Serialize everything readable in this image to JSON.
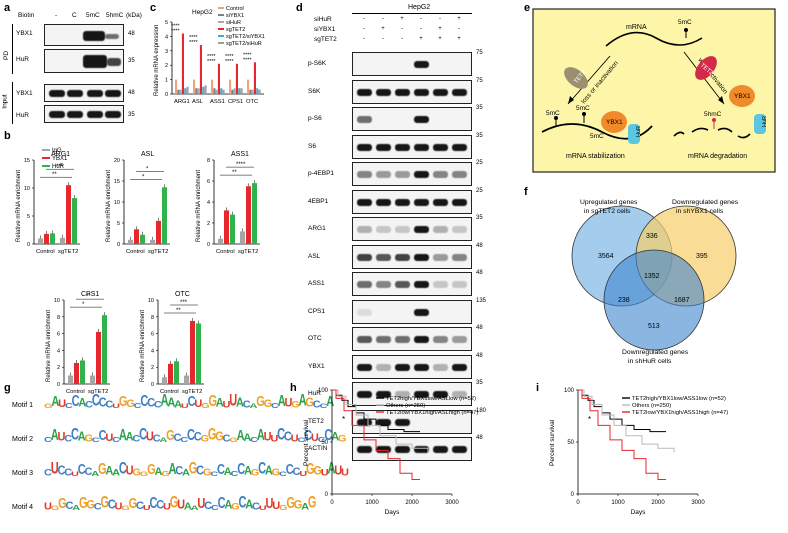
{
  "panel_letters": [
    "a",
    "b",
    "c",
    "d",
    "e",
    "f",
    "g",
    "h",
    "i"
  ],
  "panel_a": {
    "row_header": "Biotin",
    "lanes": [
      "-",
      "C",
      "5mC",
      "5hmC"
    ],
    "kda": "(kDa)",
    "group_pd": "PD",
    "group_input": "Input",
    "rows": [
      {
        "name": "YBX1",
        "mw": "48"
      },
      {
        "name": "HuR",
        "mw": "35"
      },
      {
        "name": "YBX1",
        "mw": "48"
      },
      {
        "name": "HuR",
        "mw": "35"
      }
    ]
  },
  "panel_b": {
    "legend": [
      "IgG",
      "YBX1",
      "HuR"
    ],
    "legend_colors": [
      "#a6a6a6",
      "#e8262d",
      "#2fb34a"
    ],
    "ylabel": "Relative mRNA enrichment",
    "xcats": [
      "Control",
      "sgTET2"
    ],
    "charts": [
      {
        "title": "ARG1",
        "ymax": 15,
        "ticks": [
          "0",
          "5",
          "10",
          "15"
        ],
        "values": [
          [
            1,
            1.8,
            1.9
          ],
          [
            1.1,
            10.5,
            8.2
          ]
        ],
        "sig": [
          "**",
          "***"
        ]
      },
      {
        "title": "ASL",
        "ymax": 20,
        "ticks": [
          "0",
          "5",
          "10",
          "15",
          "20"
        ],
        "values": [
          [
            1,
            3.5,
            2.2
          ],
          [
            1,
            5.5,
            13.5
          ]
        ],
        "sig": [
          "*",
          "*"
        ]
      },
      {
        "title": "ASS1",
        "ymax": 8,
        "ticks": [
          "0",
          "2",
          "4",
          "6",
          "8"
        ],
        "values": [
          [
            0.5,
            3.2,
            2.8
          ],
          [
            1.2,
            5.5,
            5.8
          ]
        ],
        "sig": [
          "**",
          "****"
        ]
      },
      {
        "title": "CPS1",
        "ymax": 10,
        "ticks": [
          "0",
          "2",
          "4",
          "6",
          "8",
          "10"
        ],
        "values": [
          [
            1,
            2.5,
            2.8
          ],
          [
            1,
            6.2,
            8.2
          ]
        ],
        "sig": [
          "*",
          "**"
        ]
      },
      {
        "title": "OTC",
        "ymax": 10,
        "ticks": [
          "0",
          "2",
          "4",
          "6",
          "8",
          "10"
        ],
        "values": [
          [
            0.8,
            2.4,
            2.7
          ],
          [
            1,
            7.5,
            7.2
          ]
        ],
        "sig": [
          "**",
          "***"
        ]
      }
    ]
  },
  "panel_c": {
    "title": "HepG2",
    "ylabel": "Relative mRNA expression",
    "ticks": [
      "0",
      "1",
      "2",
      "3",
      "4",
      "5"
    ],
    "ymax": 5,
    "categories": [
      "ARG1",
      "ASL",
      "ASS1",
      "CPS1",
      "OTC"
    ],
    "legend": [
      "Control",
      "siYBX1",
      "siHuR",
      "sgTET2",
      "sgTET2/siYBX1",
      "sgTET2/siHuR"
    ],
    "legend_colors": [
      "#f0a27a",
      "#7f7f7f",
      "#a9a9a9",
      "#e8262d",
      "#4aa8d8",
      "#9e9e9e"
    ],
    "values": [
      [
        1,
        0.3,
        0.3,
        4.2,
        0.4,
        0.5
      ],
      [
        1,
        0.4,
        0.4,
        3.4,
        0.5,
        0.6
      ],
      [
        1,
        0.4,
        0.3,
        2.1,
        0.4,
        0.3
      ],
      [
        1,
        0.3,
        0.4,
        2.1,
        0.4,
        0.4
      ],
      [
        1,
        0.3,
        0.3,
        2.2,
        0.4,
        0.3
      ]
    ],
    "sig": [
      "****",
      "****",
      "****",
      "****",
      "****"
    ]
  },
  "panel_d": {
    "title": "HepG2",
    "header_rows": [
      {
        "name": "siHuR",
        "marks": [
          "-",
          "-",
          "+",
          "-",
          "-",
          "+"
        ]
      },
      {
        "name": "siYBX1",
        "marks": [
          "-",
          "+",
          "-",
          "-",
          "+",
          "-"
        ]
      },
      {
        "name": "sgTET2",
        "marks": [
          "-",
          "-",
          "-",
          "+",
          "+",
          "+"
        ]
      }
    ],
    "rows": [
      {
        "name": "p-S6K",
        "mw": "75"
      },
      {
        "name": "S6K",
        "mw": "75"
      },
      {
        "name": "p-S6",
        "mw": "35"
      },
      {
        "name": "S6",
        "mw": "35"
      },
      {
        "name": "p-4EBP1",
        "mw": "25"
      },
      {
        "name": "4EBP1",
        "mw": "25"
      },
      {
        "name": "ARG1",
        "mw": "35"
      },
      {
        "name": "ASL",
        "mw": "48"
      },
      {
        "name": "ASS1",
        "mw": "48"
      },
      {
        "name": "CPS1",
        "mw": "135"
      },
      {
        "name": "OTC",
        "mw": "48"
      },
      {
        "name": "YBX1",
        "mw": "48"
      },
      {
        "name": "HuR",
        "mw": "35"
      },
      {
        "name": "TET2",
        "mw": "180"
      },
      {
        "name": "ACTIN",
        "mw": "48"
      }
    ]
  },
  "panel_e": {
    "mrna": "mRNA",
    "mark": "5mC",
    "tet2": "TET2",
    "ybx1": "YBX1",
    "hur": "HuR",
    "hmc": "5hmC",
    "left_arrow": "loss or inactivation",
    "right_arrow": "wt or activation",
    "stab": "mRNA stabilization",
    "degr": "mRNA degradation",
    "bg_color": "#fdf6a8"
  },
  "panel_f": {
    "set_a": [
      "Upregulated genes",
      "in sgTET2 cells"
    ],
    "set_b": [
      "Downregulated genes",
      "in shYBX1 cells"
    ],
    "set_c": [
      "Downregulated genes",
      "in shHuR cells"
    ],
    "counts": {
      "a_only": "3564",
      "ab": "336",
      "b_only": "395",
      "abc": "1352",
      "ac": "238",
      "bc": "1687",
      "c_only": "513"
    },
    "colors": [
      "#5aa3dc",
      "#f6cf6a",
      "#3f86cf"
    ]
  },
  "panel_g": {
    "motifs": [
      {
        "label": "Motif 1",
        "seq": "GAUCCACCCCUGGCCCCAAAUCUGGAUUACAGGCAUGAGCCA"
      },
      {
        "label": "Motif 2",
        "seq": "CAUCCAGCCUCAACCUCAGCCCCGGGCGAACAUUCCUCCUCCAG"
      },
      {
        "label": "Motif 3",
        "seq": "CUCCUCCAGAACUGGGAGACAGCGCCACCAGCAGCCCUGGUAUU"
      },
      {
        "label": "Motif 4",
        "seq": "UGGCAGGCGCUGGCUCCUGUAAUCCCAGCACUUUGGGAG"
      }
    ],
    "colors": {
      "A": "#2aa34a",
      "C": "#3d7fc7",
      "G": "#f0a02a",
      "U": "#e23a2a"
    }
  },
  "panel_h": {
    "ylabel": "Percent survival",
    "xlabel": "Days",
    "xticks": [
      "0",
      "1000",
      "2000",
      "3000"
    ],
    "yticks": [
      "0",
      "50",
      "100"
    ],
    "legend": [
      "TET2high/YBX1low/ASLlow (n=52)",
      "Others (n=250)",
      "TET2low/YBX1high/ASLhigh (n=47)"
    ],
    "sig": "*"
  },
  "panel_i": {
    "ylabel": "Percent survival",
    "xlabel": "Days",
    "xticks": [
      "0",
      "1000",
      "2000",
      "3000"
    ],
    "yticks": [
      "0",
      "50",
      "100"
    ],
    "legend": [
      "TET2high/YBX1low/ASS1low (n=52)",
      "Others (n=250)",
      "TET2low/YBX1high/ASS1high (n=47)"
    ],
    "sig": "*"
  }
}
